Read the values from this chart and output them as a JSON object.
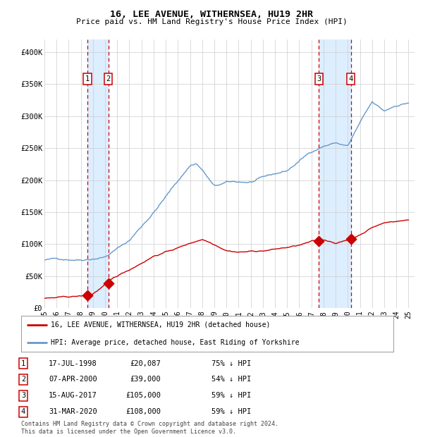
{
  "title": "16, LEE AVENUE, WITHERNSEA, HU19 2HR",
  "subtitle": "Price paid vs. HM Land Registry's House Price Index (HPI)",
  "legend_label_red": "16, LEE AVENUE, WITHERNSEA, HU19 2HR (detached house)",
  "legend_label_blue": "HPI: Average price, detached house, East Riding of Yorkshire",
  "footer": "Contains HM Land Registry data © Crown copyright and database right 2024.\nThis data is licensed under the Open Government Licence v3.0.",
  "transactions": [
    {
      "num": 1,
      "date": "17-JUL-1998",
      "price": 20087,
      "hpi_pct": "75% ↓ HPI",
      "x_year": 1998.54
    },
    {
      "num": 2,
      "date": "07-APR-2000",
      "price": 39000,
      "hpi_pct": "54% ↓ HPI",
      "x_year": 2000.27
    },
    {
      "num": 3,
      "date": "15-AUG-2017",
      "price": 105000,
      "hpi_pct": "59% ↓ HPI",
      "x_year": 2017.62
    },
    {
      "num": 4,
      "date": "31-MAR-2020",
      "price": 108000,
      "hpi_pct": "59% ↓ HPI",
      "x_year": 2020.25
    }
  ],
  "xlim": [
    1995.0,
    2025.5
  ],
  "ylim": [
    0,
    420000
  ],
  "yticks": [
    0,
    50000,
    100000,
    150000,
    200000,
    250000,
    300000,
    350000,
    400000
  ],
  "ytick_labels": [
    "£0",
    "£50K",
    "£100K",
    "£150K",
    "£200K",
    "£250K",
    "£300K",
    "£350K",
    "£400K"
  ],
  "xticks": [
    1995,
    1996,
    1997,
    1998,
    1999,
    2000,
    2001,
    2002,
    2003,
    2004,
    2005,
    2006,
    2007,
    2008,
    2009,
    2010,
    2011,
    2012,
    2013,
    2014,
    2015,
    2016,
    2017,
    2018,
    2019,
    2020,
    2021,
    2022,
    2023,
    2024,
    2025
  ],
  "red_color": "#cc0000",
  "blue_color": "#6699cc",
  "bg_color": "#ffffff",
  "grid_color": "#cccccc",
  "shade_color": "#ddeeff",
  "hpi_base_years": [
    1995,
    1998,
    2000,
    2002,
    2004,
    2007,
    2007.5,
    2008,
    2009,
    2010,
    2012,
    2013,
    2015,
    2017,
    2018,
    2019,
    2020,
    2021,
    2022,
    2023,
    2024,
    2025
  ],
  "hpi_base_vals": [
    75000,
    78000,
    85000,
    110000,
    155000,
    228000,
    232000,
    222000,
    195000,
    200000,
    200000,
    205000,
    215000,
    245000,
    255000,
    260000,
    255000,
    290000,
    320000,
    305000,
    315000,
    320000
  ],
  "red_base_years": [
    1995,
    1997,
    1998.4,
    1999.0,
    2000.3,
    2001,
    2002,
    2004,
    2006,
    2007,
    2008,
    2009,
    2010,
    2011,
    2013,
    2015,
    2016,
    2017,
    2018,
    2019,
    2020.2,
    2021,
    2022,
    2023,
    2024,
    2025
  ],
  "red_base_vals": [
    15000,
    16000,
    17500,
    20500,
    39000,
    47000,
    57000,
    80000,
    93000,
    100000,
    107000,
    100000,
    92000,
    90000,
    92000,
    97000,
    100000,
    105000,
    107000,
    103000,
    108000,
    116000,
    128000,
    135000,
    138000,
    140000
  ],
  "table_rows": [
    [
      "1",
      "17-JUL-1998",
      "£20,087",
      "75% ↓ HPI"
    ],
    [
      "2",
      "07-APR-2000",
      "£39,000",
      "54% ↓ HPI"
    ],
    [
      "3",
      "15-AUG-2017",
      "£105,000",
      "59% ↓ HPI"
    ],
    [
      "4",
      "31-MAR-2020",
      "£108,000",
      "59% ↓ HPI"
    ]
  ]
}
